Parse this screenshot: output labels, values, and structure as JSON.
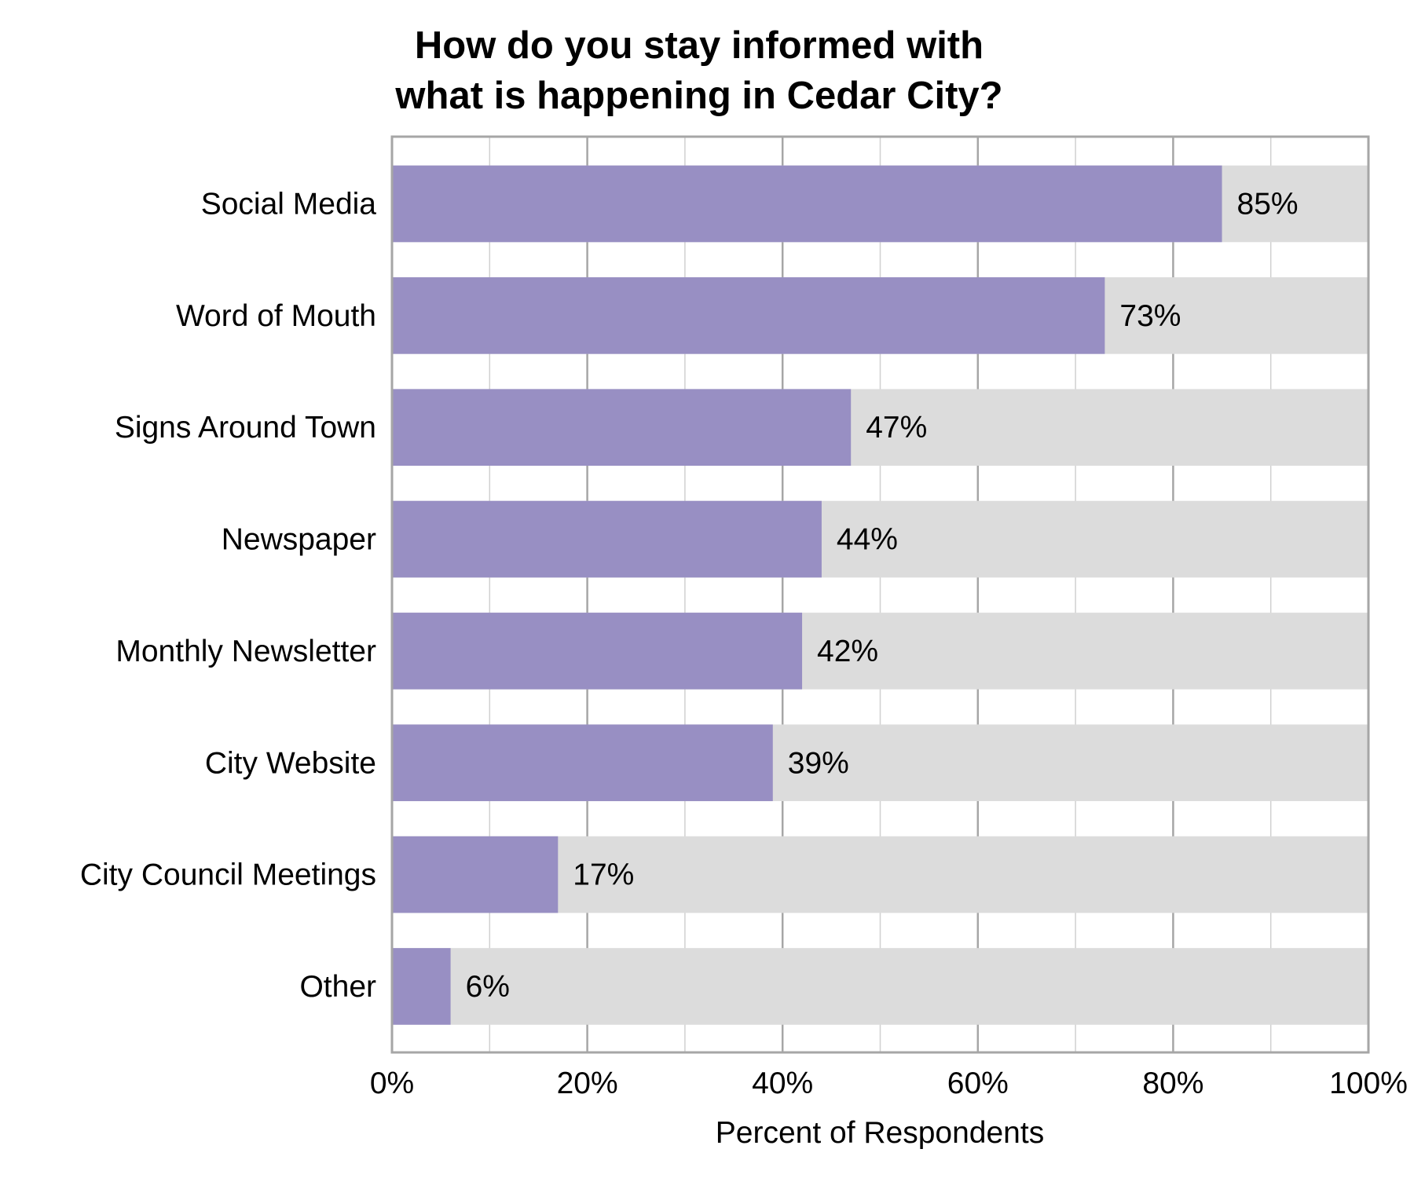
{
  "chart_data": {
    "type": "bar",
    "orientation": "horizontal",
    "title": "How do you stay informed with what is happening in Cedar City?",
    "title_lines": [
      "How do you stay informed with",
      "what is happening in Cedar City?"
    ],
    "xlabel": "Percent of Respondents",
    "ylabel": "",
    "xlim": [
      0,
      100
    ],
    "xticks": [
      "0%",
      "20%",
      "40%",
      "60%",
      "80%",
      "100%"
    ],
    "grid": true,
    "categories": [
      "Social Media",
      "Word of Mouth",
      "Signs Around Town",
      "Newspaper",
      "Monthly Newsletter",
      "City Website",
      "City Council Meetings",
      "Other"
    ],
    "values": [
      85,
      73,
      47,
      44,
      42,
      39,
      17,
      6
    ],
    "data_labels": [
      "85%",
      "73%",
      "47%",
      "44%",
      "42%",
      "39%",
      "17%",
      "6%"
    ],
    "colors": {
      "bar": "#988fc3",
      "background_bar": "#dcdcdc",
      "axis": "#a6a6a6"
    }
  }
}
